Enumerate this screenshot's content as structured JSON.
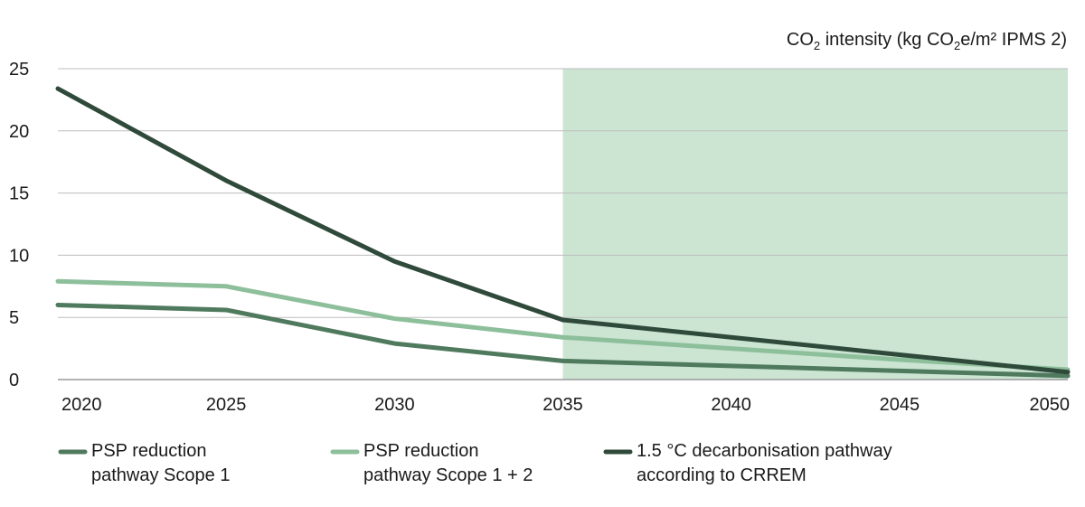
{
  "chart_data": {
    "type": "line",
    "ylabel": {
      "parts": [
        {
          "text": "CO",
          "sub": false
        },
        {
          "text": "2",
          "sub": true
        },
        {
          "text": " intensity (kg CO",
          "sub": false
        },
        {
          "text": "2",
          "sub": true
        },
        {
          "text": "e/m² IPMS 2)",
          "sub": false
        }
      ]
    },
    "x": [
      2020,
      2025,
      2030,
      2035,
      2040,
      2045,
      2050
    ],
    "xlim": [
      2020,
      2050
    ],
    "ylim": [
      0,
      25
    ],
    "yticks": [
      0,
      5,
      10,
      15,
      20,
      25
    ],
    "grid": true,
    "shaded_region": {
      "x_start": 2035,
      "x_end": 2050,
      "color": "#cce5d3"
    },
    "legend_position": "bottom",
    "series": [
      {
        "name": [
          "PSP reduction",
          "pathway Scope 1"
        ],
        "color": "#4f7a5e",
        "values": [
          6.0,
          5.6,
          2.9,
          1.5,
          1.1,
          0.7,
          0.3
        ]
      },
      {
        "name": [
          "PSP reduction",
          "pathway Scope 1 + 2"
        ],
        "color": "#8dbf9b",
        "values": [
          7.9,
          7.5,
          4.9,
          3.4,
          2.5,
          1.6,
          0.8
        ]
      },
      {
        "name": [
          "1.5 °C decarbonisation pathway",
          "according to CRREM"
        ],
        "color": "#2f4a3a",
        "values": [
          23.4,
          16.0,
          9.5,
          4.8,
          3.4,
          2.0,
          0.6
        ]
      }
    ]
  }
}
